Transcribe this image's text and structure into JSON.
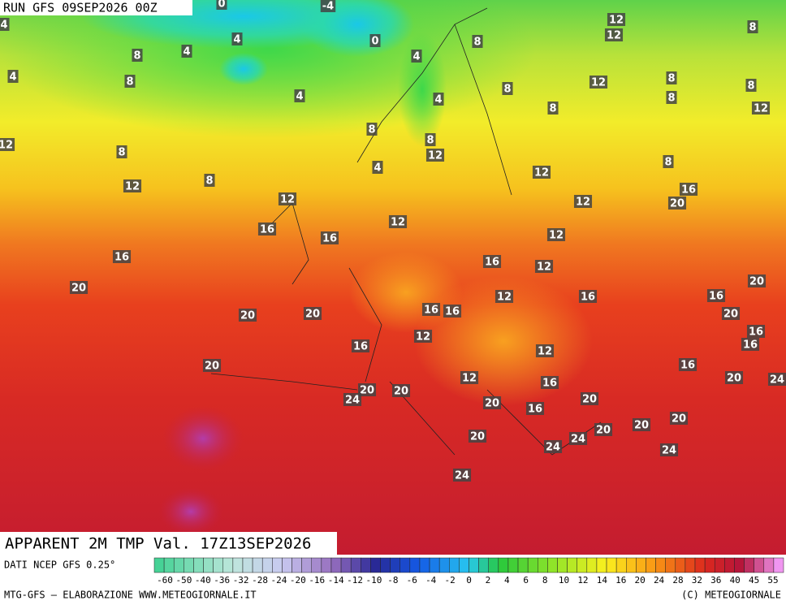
{
  "header": {
    "run": "RUN GFS 09SEP2026 00Z"
  },
  "title": "APPARENT 2M TMP Val. 17Z13SEP2026",
  "footer": {
    "source": "DATI NCEP GFS 0.25°",
    "credit": "MTG-GFS — ELABORAZIONE WWW.METEOGIORNALE.IT",
    "copyright": "(C) METEOGIORNALE"
  },
  "map_labels": [
    0,
    -4,
    4,
    12,
    12,
    8,
    4,
    0,
    8,
    8,
    4,
    4,
    4,
    8,
    12,
    8,
    8,
    8,
    4,
    4,
    8,
    8,
    12,
    8,
    8,
    12,
    8,
    12,
    4,
    8,
    12,
    8,
    12,
    16,
    12,
    12,
    20,
    12,
    16,
    12,
    16,
    16,
    16,
    12,
    20,
    20,
    16,
    12,
    16,
    16,
    16,
    20,
    20,
    20,
    12,
    16,
    16,
    16,
    12,
    16,
    20,
    20,
    12,
    24,
    16,
    20,
    20,
    24,
    20,
    20,
    16,
    20,
    20,
    20,
    24,
    20,
    24,
    24,
    24
  ],
  "colorbar": {
    "ticks": [
      -60,
      -50,
      -40,
      -36,
      -32,
      -28,
      -24,
      -20,
      -16,
      -14,
      -12,
      -10,
      -8,
      -6,
      -4,
      -2,
      0,
      2,
      4,
      6,
      8,
      10,
      12,
      14,
      16,
      20,
      24,
      28,
      32,
      36,
      40,
      45,
      55
    ]
  }
}
